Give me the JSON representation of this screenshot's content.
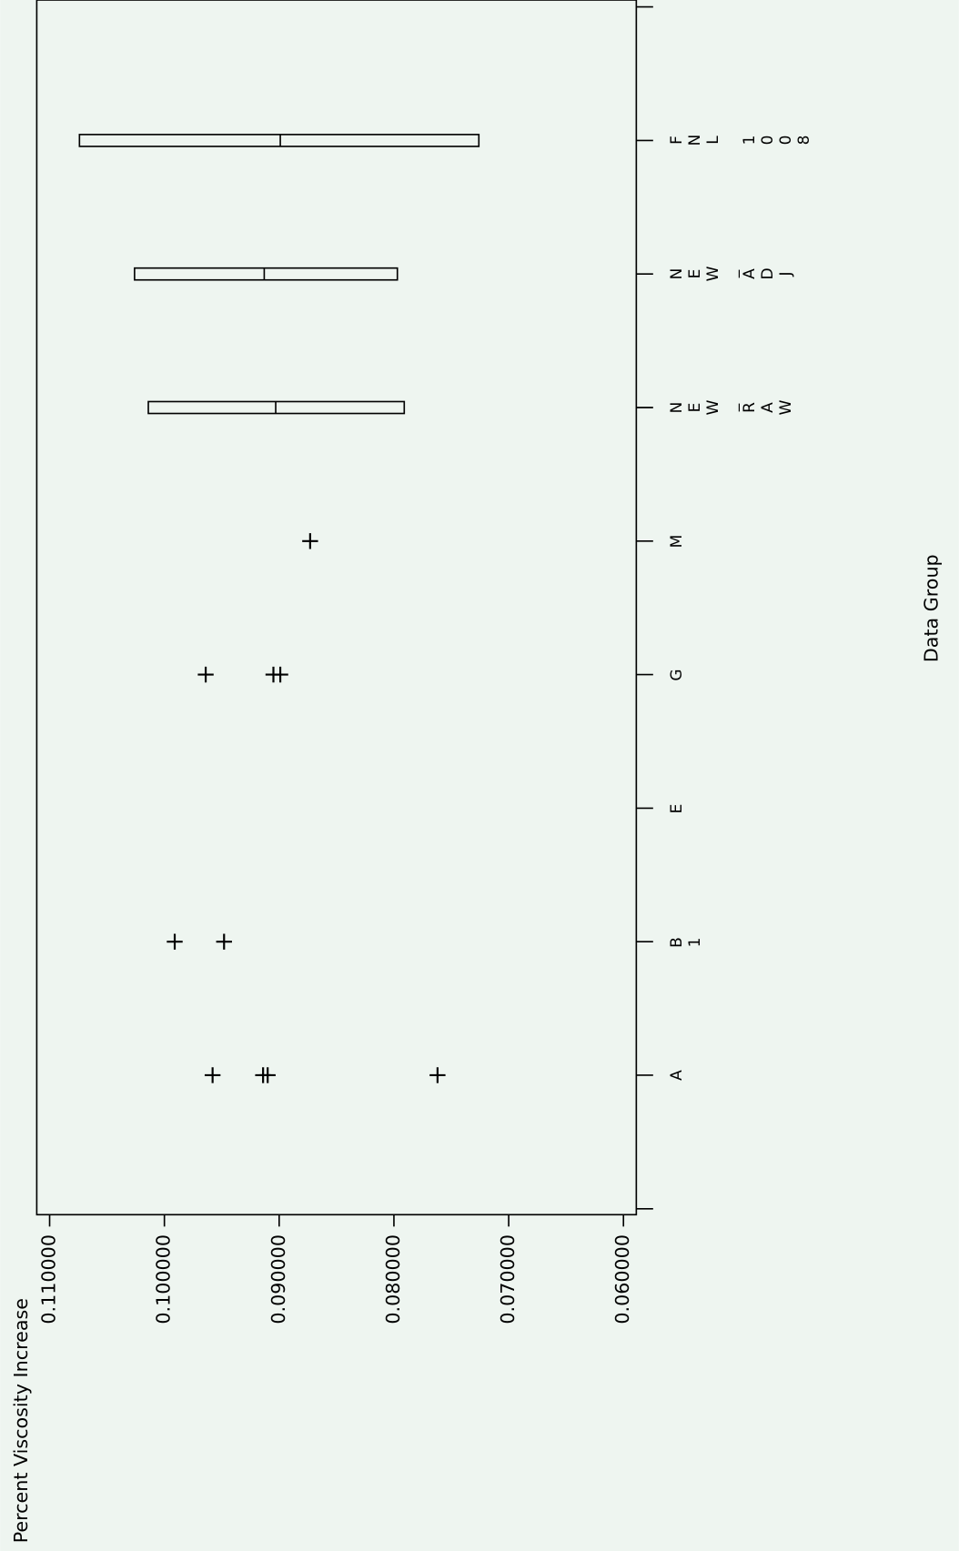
{
  "chart_data": {
    "type": "box",
    "x_label": "Percent Viscosity Increase",
    "y_label": "Data Group",
    "xlim": [
      0.111,
      0.0595
    ],
    "xticks": [
      {
        "value": 0.11,
        "label": "0.110000"
      },
      {
        "value": 0.1,
        "label": "0.100000"
      },
      {
        "value": 0.09,
        "label": "0.090000"
      },
      {
        "value": 0.08,
        "label": "0.080000"
      },
      {
        "value": 0.07,
        "label": "0.070000"
      },
      {
        "value": 0.06,
        "label": "0.060000"
      }
    ],
    "groups": [
      {
        "label": "A",
        "points": [
          0.0958,
          0.0914,
          0.091,
          0.0762
        ]
      },
      {
        "label": "B1",
        "points": [
          0.0991,
          0.0948
        ]
      },
      {
        "label": "E",
        "points": []
      },
      {
        "label": "G",
        "points": [
          0.0964,
          0.0905,
          0.0899
        ]
      },
      {
        "label": "M",
        "points": [
          0.0873
        ]
      },
      {
        "label": "NEW_RAW",
        "box": {
          "q3": 0.1014,
          "median": 0.0903,
          "q1": 0.0791
        }
      },
      {
        "label": "NEW_ADJ",
        "box": {
          "q3": 0.1026,
          "median": 0.0913,
          "q1": 0.0797
        }
      },
      {
        "label": "FNL 1008",
        "box": {
          "q3": 0.1074,
          "median": 0.0899,
          "q1": 0.0726
        }
      }
    ],
    "color": "#000000",
    "background": "#eef5f0"
  }
}
